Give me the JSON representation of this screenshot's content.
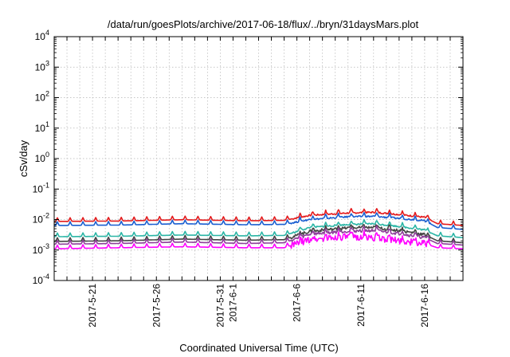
{
  "chart_data": {
    "type": "line",
    "title": "/data/run/goesPlots/archive/2017-06-18/flux/../bryn/31daysMars.plot",
    "xlabel": "Coordinated Universal Time (UTC)",
    "ylabel": "cSv/day",
    "yscale": "log",
    "ylim": [
      0.0001,
      10000
    ],
    "y_tick_labels": [
      {
        "base": "10",
        "exp": "-4"
      },
      {
        "base": "10",
        "exp": "-3"
      },
      {
        "base": "10",
        "exp": "-2"
      },
      {
        "base": "10",
        "exp": "-1"
      },
      {
        "base": "10",
        "exp": "0"
      },
      {
        "base": "10",
        "exp": "1"
      },
      {
        "base": "10",
        "exp": "2"
      },
      {
        "base": "10",
        "exp": "3"
      },
      {
        "base": "10",
        "exp": "4"
      }
    ],
    "xlim": [
      "2017-05-18",
      "2017-06-19"
    ],
    "x_tick_labels": [
      "2017-5-21",
      "2017-5-26",
      "2017-5-31",
      "2017-6-1",
      "2017-6-6",
      "2017-6-11",
      "2017-6-16"
    ],
    "x_tick_dates": [
      "2017-05-21",
      "2017-05-26",
      "2017-05-31",
      "2017-06-01",
      "2017-06-06",
      "2017-06-11",
      "2017-06-16"
    ],
    "grid": true,
    "series": [
      {
        "color": "#e41a1c",
        "x": [
          "2017-05-18",
          "2017-05-23",
          "2017-05-28",
          "2017-06-02",
          "2017-06-05",
          "2017-06-07",
          "2017-06-10",
          "2017-06-12",
          "2017-06-14",
          "2017-06-16",
          "2017-06-17",
          "2017-06-19"
        ],
        "values": [
          0.0095,
          0.0098,
          0.0108,
          0.01,
          0.0103,
          0.015,
          0.018,
          0.019,
          0.016,
          0.013,
          0.008,
          0.007
        ]
      },
      {
        "color": "#1a5fd1",
        "x": [
          "2017-05-18",
          "2017-05-23",
          "2017-05-28",
          "2017-06-02",
          "2017-06-05",
          "2017-06-07",
          "2017-06-10",
          "2017-06-12",
          "2017-06-14",
          "2017-06-16",
          "2017-06-17",
          "2017-06-19"
        ],
        "values": [
          0.007,
          0.0072,
          0.008,
          0.0074,
          0.0076,
          0.011,
          0.0135,
          0.014,
          0.012,
          0.01,
          0.006,
          0.0052
        ]
      },
      {
        "color": "#2ab5a5",
        "x": [
          "2017-05-18",
          "2017-05-23",
          "2017-05-28",
          "2017-06-02",
          "2017-06-05",
          "2017-06-07",
          "2017-06-10",
          "2017-06-12",
          "2017-06-14",
          "2017-06-16",
          "2017-06-17",
          "2017-06-19"
        ],
        "values": [
          0.003,
          0.0031,
          0.0034,
          0.0032,
          0.0033,
          0.006,
          0.0075,
          0.008,
          0.0065,
          0.005,
          0.0032,
          0.0028
        ]
      },
      {
        "color": "#444444",
        "x": [
          "2017-05-18",
          "2017-05-23",
          "2017-05-28",
          "2017-06-02",
          "2017-06-05",
          "2017-06-07",
          "2017-06-10",
          "2017-06-12",
          "2017-06-14",
          "2017-06-16",
          "2017-06-17",
          "2017-06-19"
        ],
        "values": [
          0.0021,
          0.0022,
          0.0025,
          0.0023,
          0.0024,
          0.0045,
          0.0058,
          0.006,
          0.0048,
          0.0035,
          0.0022,
          0.0019
        ]
      },
      {
        "color": "#8e3f9a",
        "x": [
          "2017-05-18",
          "2017-05-23",
          "2017-05-28",
          "2017-06-02",
          "2017-06-05",
          "2017-06-07",
          "2017-06-10",
          "2017-06-12",
          "2017-06-14",
          "2017-06-16",
          "2017-06-17",
          "2017-06-19"
        ],
        "values": [
          0.0017,
          0.0018,
          0.002,
          0.0018,
          0.0019,
          0.0036,
          0.0046,
          0.0048,
          0.0038,
          0.0028,
          0.0018,
          0.0016
        ]
      },
      {
        "color": "#ff00ff",
        "x": [
          "2017-05-18",
          "2017-05-23",
          "2017-05-28",
          "2017-06-02",
          "2017-06-05",
          "2017-06-07",
          "2017-06-10",
          "2017-06-12",
          "2017-06-14",
          "2017-06-16",
          "2017-06-17",
          "2017-06-19"
        ],
        "values": [
          0.0012,
          0.0013,
          0.0014,
          0.0013,
          0.0013,
          0.0024,
          0.003,
          0.0028,
          0.0022,
          0.0018,
          0.0013,
          0.0012
        ]
      }
    ]
  }
}
